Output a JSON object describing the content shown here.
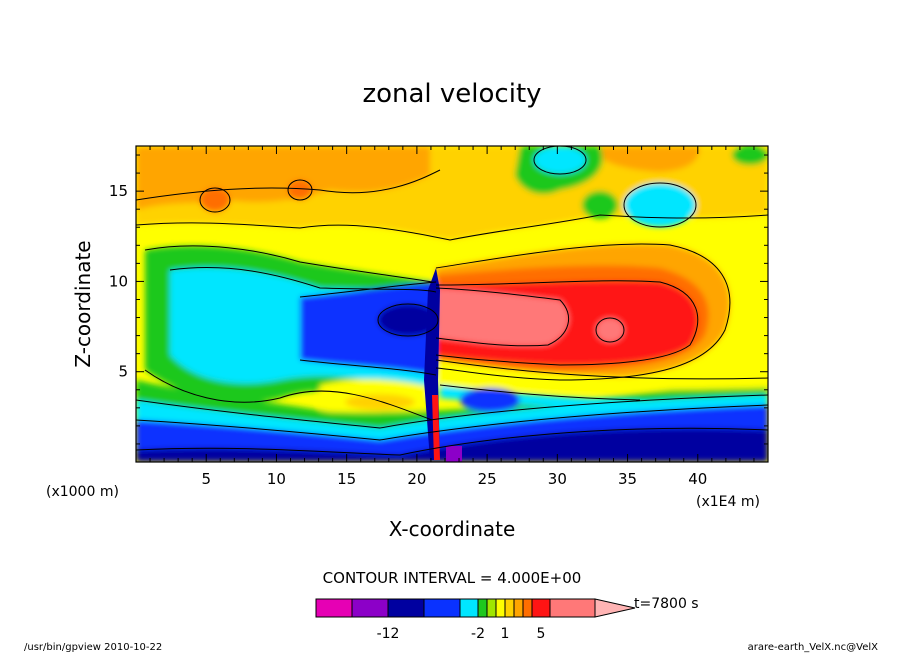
{
  "chart_data": {
    "type": "heatmap",
    "title": "zonal velocity",
    "xlabel": "X-coordinate",
    "ylabel": "Z-coordinate",
    "x_units": "(x1E4 m)",
    "y_units": "(x1000 m)",
    "xlim": [
      0,
      45
    ],
    "ylim": [
      0,
      17.5
    ],
    "x_ticks": [
      "5",
      "10",
      "15",
      "20",
      "25",
      "30",
      "35",
      "40"
    ],
    "y_ticks": [
      "5",
      "10",
      "15"
    ],
    "contour_interval": "CONTOUR INTERVAL = 4.000E+00",
    "time_label": "t=7800 s",
    "colorbar": {
      "colors": [
        "#e600b4",
        "#8c00c8",
        "#0000a0",
        "#0a32ff",
        "#00e6ff",
        "#1ec81e",
        "#a0e600",
        "#ffff00",
        "#ffd200",
        "#ffa500",
        "#ff6e00",
        "#ff1414",
        "#ff7878",
        "#ffb4b4"
      ],
      "tick_labels": [
        "-12",
        "-2",
        "1",
        "5"
      ]
    },
    "footer_left": "/usr/bin/gpview  2010-10-22",
    "footer_right": "arare-earth_VelX.nc@VelX"
  }
}
